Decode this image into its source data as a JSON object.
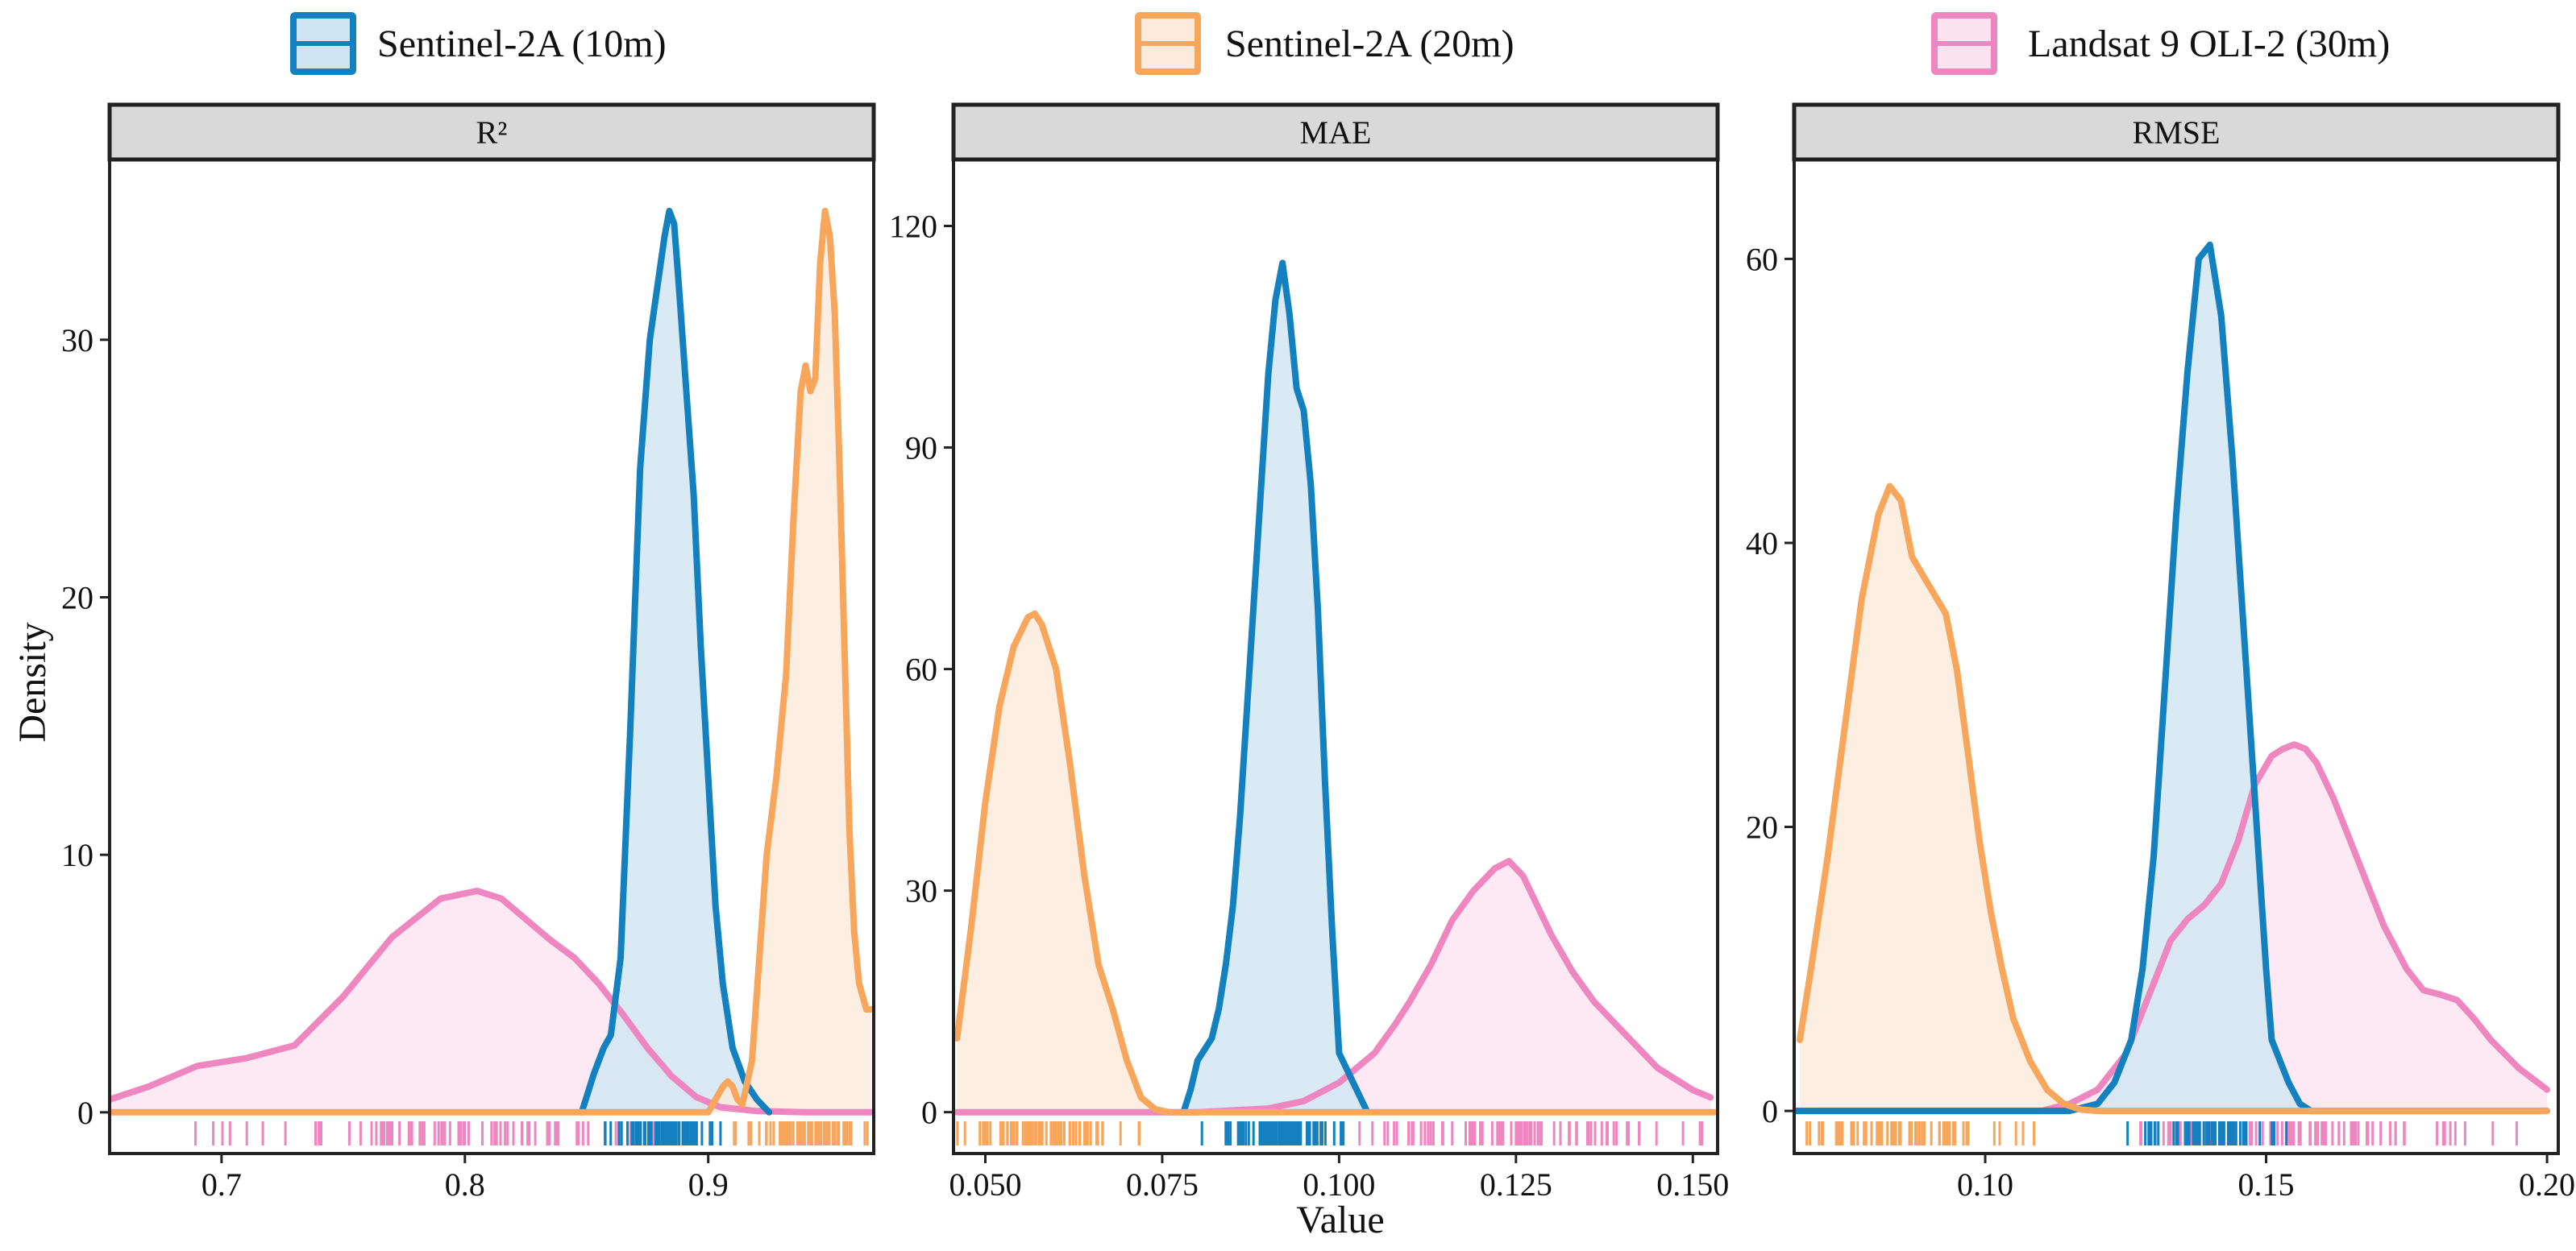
{
  "chart_data": {
    "type": "area",
    "title": "",
    "xlabel": "Value",
    "ylabel": "Density",
    "legend_position": "top",
    "series": [
      {
        "name": "Sentinel-2A (10m)",
        "line_color": "#1380C0",
        "fill_color": "#D0E5F3"
      },
      {
        "name": "Sentinel-2A (20m)",
        "line_color": "#F7A65B",
        "fill_color": "#FDEADB"
      },
      {
        "name": "Landsat 9 OLI-2 (30m)",
        "line_color": "#EE86BF",
        "fill_color": "#FCE3F0"
      }
    ],
    "panels": [
      {
        "strip": "R²",
        "xlim": [
          0.654,
          0.968
        ],
        "ylim": [
          -1.6,
          37
        ],
        "xticks": [
          0.7,
          0.8,
          0.9
        ],
        "xtick_labels": [
          "0.7",
          "0.8",
          "0.9"
        ],
        "yticks": [
          0,
          10,
          20,
          30
        ],
        "ytick_labels": [
          "0",
          "10",
          "20",
          "30"
        ],
        "curves": [
          {
            "x": [
              0.848,
              0.853,
              0.857,
              0.86,
              0.864,
              0.868,
              0.872,
              0.876,
              0.879,
              0.882,
              0.884,
              0.886,
              0.888,
              0.891,
              0.894,
              0.897,
              0.9,
              0.903,
              0.906,
              0.91,
              0.915,
              0.92,
              0.925
            ],
            "y": [
              0,
              1.5,
              2.5,
              3,
              6,
              15,
              25,
              30,
              32,
              34,
              35,
              34.5,
              32,
              28,
              24,
              18,
              13,
              8,
              5,
              2.5,
              1.2,
              0.5,
              0
            ]
          },
          {
            "x": [
              0.654,
              0.9,
              0.903,
              0.906,
              0.908,
              0.91,
              0.912,
              0.914,
              0.918,
              0.921,
              0.924,
              0.928,
              0.932,
              0.935,
              0.938,
              0.94,
              0.942,
              0.944,
              0.946,
              0.948,
              0.95,
              0.952,
              0.954,
              0.956,
              0.958,
              0.96,
              0.962,
              0.965,
              0.967
            ],
            "y": [
              0,
              0,
              0.5,
              1,
              1.2,
              1,
              0.5,
              0.3,
              2,
              6,
              10,
              13,
              17,
              23,
              28,
              29,
              28,
              28.5,
              33,
              35,
              34,
              31,
              25,
              18,
              11,
              7,
              5,
              4,
              4
            ]
          },
          {
            "x": [
              0.654,
              0.67,
              0.69,
              0.71,
              0.73,
              0.75,
              0.77,
              0.79,
              0.805,
              0.815,
              0.825,
              0.835,
              0.845,
              0.855,
              0.865,
              0.875,
              0.885,
              0.895,
              0.905,
              0.92,
              0.94,
              0.967
            ],
            "y": [
              0.5,
              1,
              1.8,
              2.1,
              2.6,
              4.5,
              6.8,
              8.3,
              8.6,
              8.3,
              7.5,
              6.7,
              6,
              5,
              3.8,
              2.5,
              1.4,
              0.6,
              0.2,
              0.05,
              0,
              0
            ]
          }
        ]
      },
      {
        "strip": "MAE",
        "xlim": [
          0.0455,
          0.1535
        ],
        "ylim": [
          -5.6,
          129
        ],
        "xticks": [
          0.05,
          0.075,
          0.1,
          0.125,
          0.15
        ],
        "xtick_labels": [
          "0.050",
          "0.075",
          "0.100",
          "0.125",
          "0.150"
        ],
        "yticks": [
          0,
          30,
          60,
          90,
          120
        ],
        "ytick_labels": [
          "0",
          "30",
          "60",
          "90",
          "120"
        ],
        "curves": [
          {
            "x": [
              0.078,
              0.079,
              0.08,
              0.081,
              0.082,
              0.083,
              0.084,
              0.085,
              0.086,
              0.087,
              0.088,
              0.089,
              0.09,
              0.091,
              0.092,
              0.093,
              0.094,
              0.095,
              0.096,
              0.097,
              0.098,
              0.099,
              0.1,
              0.101,
              0.102,
              0.103,
              0.104
            ],
            "y": [
              0,
              3,
              7,
              8.5,
              10,
              14,
              20,
              28,
              40,
              55,
              70,
              85,
              100,
              110,
              115,
              108,
              98,
              95,
              85,
              68,
              45,
              25,
              8,
              6,
              4,
              2,
              0
            ]
          },
          {
            "x": [
              0.046,
              0.048,
              0.05,
              0.052,
              0.054,
              0.056,
              0.057,
              0.058,
              0.06,
              0.062,
              0.064,
              0.066,
              0.067,
              0.068,
              0.07,
              0.072,
              0.074,
              0.076,
              0.078,
              0.153
            ],
            "y": [
              10,
              25,
              42,
              55,
              63,
              67,
              67.5,
              66,
              60,
              47,
              32,
              20,
              17,
              14,
              7,
              2,
              0.4,
              0,
              0,
              0
            ]
          },
          {
            "x": [
              0.046,
              0.08,
              0.09,
              0.095,
              0.1,
              0.105,
              0.108,
              0.11,
              0.113,
              0.116,
              0.119,
              0.122,
              0.124,
              0.126,
              0.128,
              0.13,
              0.133,
              0.136,
              0.14,
              0.145,
              0.15,
              0.1525
            ],
            "y": [
              0,
              0,
              0.5,
              1.5,
              4,
              8,
              12,
              15,
              20,
              26,
              30,
              33,
              34,
              32,
              28,
              24,
              19,
              15,
              11,
              6,
              3,
              2
            ]
          }
        ]
      },
      {
        "strip": "RMSE",
        "xlim": [
          0.066,
          0.202
        ],
        "ylim": [
          -3,
          67
        ],
        "xticks": [
          0.1,
          0.15,
          0.2
        ],
        "xtick_labels": [
          "0.10",
          "0.15",
          "0.20"
        ],
        "yticks": [
          0,
          20,
          40,
          60
        ],
        "ytick_labels": [
          "0",
          "20",
          "40",
          "60"
        ],
        "curves": [
          {
            "x": [
              0.066,
              0.115,
              0.12,
              0.123,
              0.126,
              0.128,
              0.13,
              0.132,
              0.134,
              0.136,
              0.138,
              0.14,
              0.142,
              0.144,
              0.146,
              0.148,
              0.15,
              0.151,
              0.152,
              0.154,
              0.156,
              0.158,
              0.2
            ],
            "y": [
              0,
              0,
              0.5,
              2,
              5,
              10,
              18,
              30,
              42,
              52,
              60,
              61,
              56,
              46,
              34,
              22,
              10,
              5,
              4,
              2,
              0.5,
              0,
              0
            ]
          },
          {
            "x": [
              0.067,
              0.069,
              0.072,
              0.075,
              0.078,
              0.081,
              0.083,
              0.085,
              0.087,
              0.09,
              0.093,
              0.095,
              0.097,
              0.099,
              0.101,
              0.103,
              0.105,
              0.108,
              0.111,
              0.114,
              0.117,
              0.12,
              0.123,
              0.2
            ],
            "y": [
              5,
              10,
              18,
              27,
              36,
              42,
              44,
              43,
              39,
              37,
              35,
              31,
              25,
              19,
              14,
              10,
              6.5,
              3.5,
              1.5,
              0.5,
              0.1,
              0,
              0,
              0
            ]
          },
          {
            "x": [
              0.066,
              0.11,
              0.115,
              0.12,
              0.125,
              0.13,
              0.133,
              0.136,
              0.139,
              0.142,
              0.145,
              0.148,
              0.151,
              0.153,
              0.155,
              0.157,
              0.159,
              0.162,
              0.165,
              0.168,
              0.171,
              0.175,
              0.178,
              0.181,
              0.184,
              0.187,
              0.19,
              0.195,
              0.2
            ],
            "y": [
              0,
              0,
              0.5,
              1.5,
              4,
              9,
              12,
              13.5,
              14.5,
              16,
              19,
              23,
              25,
              25.5,
              25.8,
              25.5,
              24.5,
              22,
              19,
              16,
              13,
              10,
              8.5,
              8.2,
              7.8,
              6.5,
              5,
              3,
              1.5
            ]
          }
        ]
      }
    ]
  }
}
